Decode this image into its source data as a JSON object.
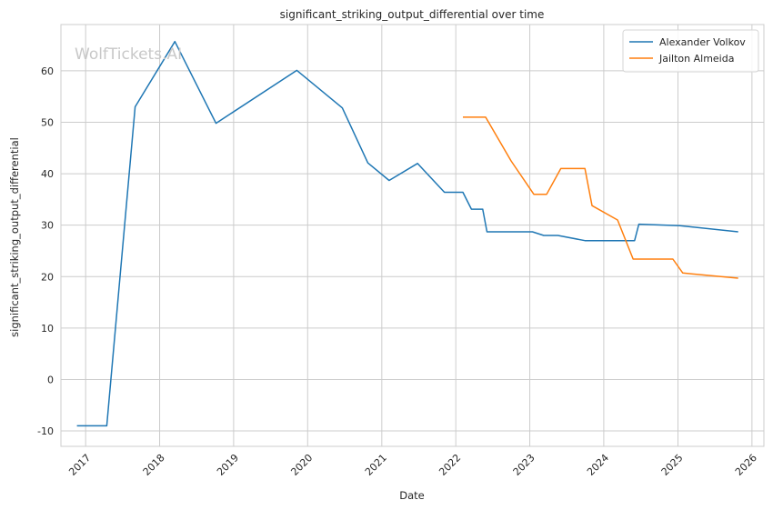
{
  "chart_data": {
    "type": "line",
    "title": "significant_striking_output_differential over time",
    "xlabel": "Date",
    "ylabel": "significant_striking_output_differential",
    "watermark": "WolfTickets.AI",
    "xlim": [
      "2016-09-01",
      "2026-03-01"
    ],
    "ylim": [
      -13,
      69
    ],
    "x_ticks": [
      "2017",
      "2018",
      "2019",
      "2020",
      "2021",
      "2022",
      "2023",
      "2024",
      "2025",
      "2026"
    ],
    "y_ticks": [
      -10,
      0,
      10,
      20,
      30,
      40,
      50,
      60
    ],
    "grid": true,
    "legend_position": "top-right",
    "series": [
      {
        "name": "Alexander Volkov",
        "color": "#1f77b4",
        "points": [
          {
            "x": "2016-11-19",
            "y": -9
          },
          {
            "x": "2017-04-15",
            "y": -9
          },
          {
            "x": "2017-09-02",
            "y": 53
          },
          {
            "x": "2018-03-17",
            "y": 65.7
          },
          {
            "x": "2018-10-06",
            "y": 49.8
          },
          {
            "x": "2019-11-09",
            "y": 60.1
          },
          {
            "x": "2020-06-20",
            "y": 52.8
          },
          {
            "x": "2020-10-24",
            "y": 42.1
          },
          {
            "x": "2021-02-06",
            "y": 38.7
          },
          {
            "x": "2021-06-26",
            "y": 42
          },
          {
            "x": "2021-11-06",
            "y": 36.4
          },
          {
            "x": "2022-02-05",
            "y": 36.4
          },
          {
            "x": "2022-03-19",
            "y": 33.1
          },
          {
            "x": "2022-05-14",
            "y": 33.1
          },
          {
            "x": "2022-06-04",
            "y": 28.7
          },
          {
            "x": "2023-01-14",
            "y": 28.7
          },
          {
            "x": "2023-03-11",
            "y": 28
          },
          {
            "x": "2023-05-20",
            "y": 28
          },
          {
            "x": "2023-09-30",
            "y": 27
          },
          {
            "x": "2024-06-01",
            "y": 27
          },
          {
            "x": "2024-06-22",
            "y": 30.2
          },
          {
            "x": "2025-01-11",
            "y": 29.9
          },
          {
            "x": "2025-10-25",
            "y": 28.7
          }
        ]
      },
      {
        "name": "Jailton Almeida",
        "color": "#ff7f0e",
        "points": [
          {
            "x": "2022-02-05",
            "y": 51
          },
          {
            "x": "2022-05-28",
            "y": 51
          },
          {
            "x": "2022-10-01",
            "y": 42.5
          },
          {
            "x": "2023-01-21",
            "y": 36
          },
          {
            "x": "2023-03-25",
            "y": 36
          },
          {
            "x": "2023-06-03",
            "y": 41
          },
          {
            "x": "2023-09-30",
            "y": 41
          },
          {
            "x": "2023-11-04",
            "y": 33.8
          },
          {
            "x": "2024-03-09",
            "y": 31
          },
          {
            "x": "2024-05-25",
            "y": 23.4
          },
          {
            "x": "2024-12-07",
            "y": 23.4
          },
          {
            "x": "2025-01-25",
            "y": 20.7
          },
          {
            "x": "2025-10-25",
            "y": 19.7
          }
        ]
      }
    ]
  }
}
